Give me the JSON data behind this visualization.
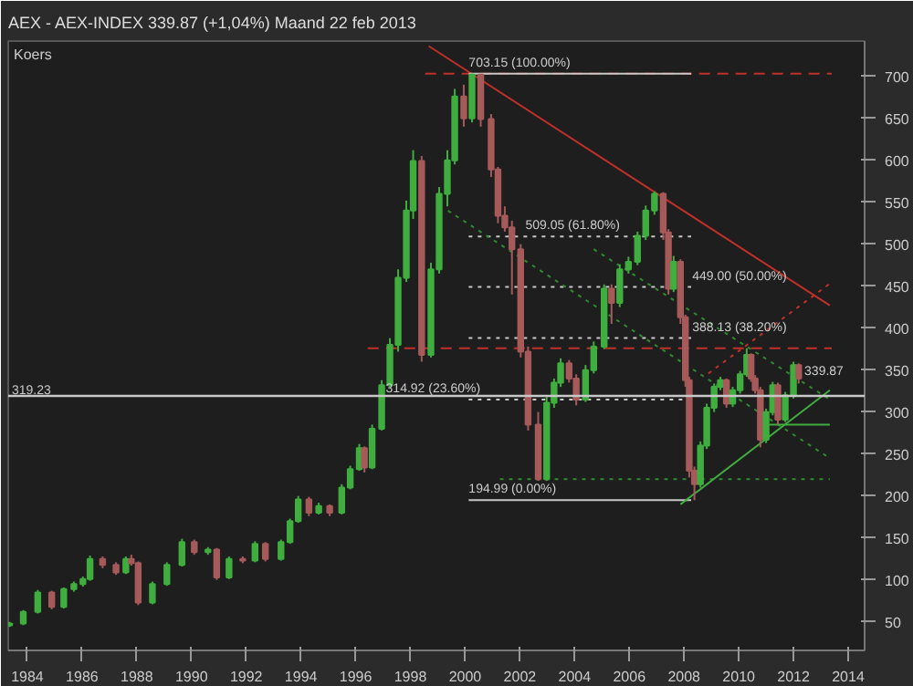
{
  "chart_data": {
    "type": "candlestick",
    "title": "AEX - AEX-INDEX   339.87 (+1,04%)   Maand  22 feb 2013",
    "subtitle": "Koers",
    "x": [
      1983.35,
      1983.85,
      1984.38,
      1984.89,
      1985.33,
      1985.7,
      1986.03,
      1986.29,
      1986.75,
      1987.24,
      1987.6,
      1987.8,
      1988.05,
      1988.57,
      1989.1,
      1989.65,
      1990.1,
      1990.6,
      1990.92,
      1991.37,
      1991.87,
      1992.32,
      1992.7,
      1993.27,
      1993.6,
      1993.9,
      1994.29,
      1994.65,
      1995.05,
      1995.49,
      1995.8,
      1996.13,
      1996.32,
      1996.6,
      1996.95,
      1997.25,
      1997.55,
      1997.85,
      1998.1,
      1998.41,
      1998.75,
      1999.05,
      1999.35,
      1999.62,
      1999.95,
      2000.25,
      2000.57,
      2000.95,
      2001.2,
      2001.45,
      2001.71,
      2002.03,
      2002.3,
      2002.67,
      2002.98,
      2003.25,
      2003.49,
      2003.8,
      2004.06,
      2004.4,
      2004.7,
      2005.08,
      2005.35,
      2005.65,
      2005.97,
      2006.3,
      2006.6,
      2006.92,
      2007.24,
      2007.43,
      2007.62,
      2007.87,
      2008.05,
      2008.19,
      2008.38,
      2008.6,
      2008.83,
      2009.1,
      2009.33,
      2009.55,
      2009.78,
      2010.05,
      2010.29,
      2010.45,
      2010.6,
      2010.79,
      2011.0,
      2011.24,
      2011.43,
      2011.7,
      2012.0,
      2012.19
    ],
    "ohlc": [
      [
        46,
        50,
        44,
        48
      ],
      [
        48,
        64,
        46,
        62
      ],
      [
        62,
        88,
        60,
        85
      ],
      [
        85,
        87,
        65,
        68
      ],
      [
        68,
        91,
        66,
        89
      ],
      [
        89,
        98,
        86,
        95
      ],
      [
        95,
        104,
        92,
        101
      ],
      [
        101,
        129,
        99,
        125
      ],
      [
        125,
        128,
        114,
        118
      ],
      [
        118,
        121,
        106,
        109
      ],
      [
        109,
        128,
        107,
        125
      ],
      [
        125,
        130,
        117,
        120
      ],
      [
        120,
        122,
        70,
        73
      ],
      [
        73,
        98,
        71,
        95
      ],
      [
        95,
        121,
        93,
        118
      ],
      [
        118,
        149,
        116,
        145
      ],
      [
        145,
        148,
        130,
        133
      ],
      [
        133,
        139,
        130,
        136
      ],
      [
        136,
        138,
        100,
        103
      ],
      [
        103,
        128,
        101,
        125
      ],
      [
        125,
        128,
        120,
        123
      ],
      [
        123,
        146,
        121,
        143
      ],
      [
        143,
        145,
        122,
        125
      ],
      [
        125,
        148,
        123,
        145
      ],
      [
        145,
        173,
        143,
        170
      ],
      [
        170,
        200,
        168,
        196
      ],
      [
        196,
        199,
        176,
        180
      ],
      [
        180,
        192,
        178,
        188
      ],
      [
        188,
        190,
        176,
        180
      ],
      [
        180,
        214,
        178,
        210
      ],
      [
        210,
        236,
        208,
        232
      ],
      [
        232,
        262,
        230,
        257
      ],
      [
        257,
        259,
        228,
        234
      ],
      [
        234,
        285,
        232,
        280
      ],
      [
        280,
        338,
        278,
        332
      ],
      [
        332,
        388,
        330,
        380
      ],
      [
        380,
        470,
        372,
        460
      ],
      [
        460,
        552,
        455,
        540
      ],
      [
        540,
        612,
        530,
        599
      ],
      [
        599,
        605,
        360,
        368
      ],
      [
        368,
        478,
        365,
        470
      ],
      [
        470,
        568,
        465,
        560
      ],
      [
        560,
        612,
        545,
        600
      ],
      [
        600,
        685,
        595,
        676
      ],
      [
        676,
        690,
        640,
        650
      ],
      [
        650,
        703.15,
        645,
        702
      ],
      [
        702,
        702,
        640,
        649
      ],
      [
        649,
        655,
        580,
        589
      ],
      [
        589,
        592,
        525,
        534
      ],
      [
        534,
        545,
        515,
        520
      ],
      [
        520,
        528,
        440,
        494
      ],
      [
        494,
        500,
        365,
        372
      ],
      [
        372,
        378,
        278,
        285
      ],
      [
        285,
        300,
        218,
        220
      ],
      [
        220,
        318,
        218,
        311
      ],
      [
        311,
        340,
        305,
        335
      ],
      [
        335,
        364,
        330,
        358
      ],
      [
        358,
        362,
        335,
        340
      ],
      [
        340,
        345,
        308,
        315
      ],
      [
        315,
        356,
        312,
        350
      ],
      [
        350,
        384,
        346,
        378
      ],
      [
        378,
        452,
        375,
        447
      ],
      [
        447,
        452,
        405,
        430
      ],
      [
        430,
        476,
        425,
        470
      ],
      [
        470,
        485,
        465,
        479
      ],
      [
        479,
        515,
        475,
        510
      ],
      [
        510,
        546,
        505,
        540
      ],
      [
        540,
        563,
        535,
        560
      ],
      [
        560,
        562,
        505,
        514
      ],
      [
        514,
        518,
        440,
        447
      ],
      [
        447,
        486,
        443,
        479
      ],
      [
        479,
        482,
        405,
        413
      ],
      [
        413,
        416,
        330,
        338
      ],
      [
        338,
        342,
        222,
        230
      ],
      [
        230,
        235,
        194.99,
        214
      ],
      [
        214,
        265,
        210,
        260
      ],
      [
        260,
        310,
        256,
        305
      ],
      [
        305,
        334,
        300,
        330
      ],
      [
        330,
        342,
        326,
        338
      ],
      [
        338,
        340,
        305,
        310
      ],
      [
        310,
        330,
        306,
        326
      ],
      [
        326,
        349,
        322,
        345
      ],
      [
        345,
        376,
        342,
        368
      ],
      [
        368,
        370,
        336,
        340
      ],
      [
        340,
        344,
        322,
        326
      ],
      [
        326,
        330,
        258,
        267
      ],
      [
        267,
        304,
        263,
        300
      ],
      [
        300,
        336,
        296,
        332
      ],
      [
        332,
        335,
        285,
        291
      ],
      [
        291,
        324,
        288,
        320
      ],
      [
        320,
        360,
        316,
        356
      ],
      [
        356,
        358,
        334,
        339.87
      ]
    ],
    "colors": [
      "#3fae3f",
      "#3fae3f",
      "#3fae3f",
      "#a65a5a",
      "#3fae3f",
      "#3fae3f",
      "#3fae3f",
      "#3fae3f",
      "#a65a5a",
      "#a65a5a",
      "#3fae3f",
      "#a65a5a",
      "#a65a5a",
      "#3fae3f",
      "#3fae3f",
      "#3fae3f",
      "#a65a5a",
      "#3fae3f",
      "#a65a5a",
      "#3fae3f",
      "#a65a5a",
      "#3fae3f",
      "#a65a5a",
      "#3fae3f",
      "#3fae3f",
      "#3fae3f",
      "#a65a5a",
      "#3fae3f",
      "#a65a5a",
      "#3fae3f",
      "#3fae3f",
      "#3fae3f",
      "#a65a5a",
      "#3fae3f",
      "#3fae3f",
      "#3fae3f",
      "#3fae3f",
      "#3fae3f",
      "#3fae3f",
      "#a65a5a",
      "#3fae3f",
      "#3fae3f",
      "#3fae3f",
      "#3fae3f",
      "#a65a5a",
      "#3fae3f",
      "#a65a5a",
      "#a65a5a",
      "#a65a5a",
      "#a65a5a",
      "#a65a5a",
      "#a65a5a",
      "#a65a5a",
      "#a65a5a",
      "#3fae3f",
      "#3fae3f",
      "#3fae3f",
      "#a65a5a",
      "#a65a5a",
      "#3fae3f",
      "#3fae3f",
      "#3fae3f",
      "#a65a5a",
      "#3fae3f",
      "#3fae3f",
      "#3fae3f",
      "#3fae3f",
      "#3fae3f",
      "#a65a5a",
      "#a65a5a",
      "#3fae3f",
      "#a65a5a",
      "#a65a5a",
      "#a65a5a",
      "#a65a5a",
      "#3fae3f",
      "#3fae3f",
      "#3fae3f",
      "#3fae3f",
      "#a65a5a",
      "#3fae3f",
      "#3fae3f",
      "#3fae3f",
      "#a65a5a",
      "#a65a5a",
      "#a65a5a",
      "#3fae3f",
      "#3fae3f",
      "#a65a5a",
      "#3fae3f",
      "#3fae3f",
      "#a65a5a"
    ],
    "series": [
      {
        "type": "line",
        "color": "#c0302a",
        "line_style": "solid",
        "x": [
          1998.67,
          2013.33
        ],
        "values": [
          736,
          427
        ]
      },
      {
        "type": "line",
        "color": "#c0302a",
        "line_style": "dotted",
        "x": [
          2008.89,
          2013.33
        ],
        "values": [
          346,
          453
        ]
      },
      {
        "type": "line",
        "color": "#c0302a",
        "line_style": "dashed",
        "x": [
          1998.54,
          2013.4
        ],
        "values": [
          703.15,
          703.15
        ]
      },
      {
        "type": "line",
        "color": "#c0302a",
        "line_style": "dashed",
        "x": [
          1996.44,
          2013.4
        ],
        "values": [
          376,
          376
        ]
      },
      {
        "type": "line",
        "color": "#c8c8c8",
        "line_style": "solid",
        "x": [
          2000.13,
          2008.26
        ],
        "values": [
          703.15,
          703.15
        ]
      },
      {
        "type": "line",
        "color": "#c8c8c8",
        "line_style": "dotted",
        "x": [
          2000.13,
          2008.26
        ],
        "values": [
          509.05,
          509.05
        ]
      },
      {
        "type": "line",
        "color": "#c8c8c8",
        "line_style": "dotted",
        "x": [
          2000.13,
          2008.26
        ],
        "values": [
          449.0,
          449.0
        ]
      },
      {
        "type": "line",
        "color": "#c8c8c8",
        "line_style": "dotted",
        "x": [
          2000.13,
          2008.26
        ],
        "values": [
          388.13,
          388.13
        ]
      },
      {
        "type": "line",
        "color": "#c8c8c8",
        "line_style": "dotted",
        "x": [
          2000.13,
          2008.26
        ],
        "values": [
          314.92,
          314.92
        ]
      },
      {
        "type": "line",
        "color": "#c8c8c8",
        "line_style": "solid",
        "x": [
          2000.13,
          2008.26
        ],
        "values": [
          194.99,
          194.99
        ]
      },
      {
        "type": "line",
        "color": "#2f8a2f",
        "line_style": "dotted",
        "x": [
          1999.37,
          2013.33
        ],
        "values": [
          540,
          245
        ]
      },
      {
        "type": "line",
        "color": "#2f8a2f",
        "line_style": "dotted",
        "x": [
          2004.7,
          2013.33
        ],
        "values": [
          494,
          315
        ]
      },
      {
        "type": "line",
        "color": "#2f8a2f",
        "line_style": "dotted",
        "x": [
          2001.27,
          2013.33
        ],
        "values": [
          220,
          220
        ]
      },
      {
        "type": "line",
        "color": "#3fae3f",
        "line_style": "solid",
        "x": [
          2007.87,
          2013.33
        ],
        "values": [
          190,
          326
        ]
      },
      {
        "type": "line",
        "color": "#3fae3f",
        "line_style": "solid",
        "x": [
          2011.11,
          2013.33
        ],
        "values": [
          285,
          285
        ]
      }
    ],
    "ref_lines": [
      {
        "axis": "y",
        "value": 319.23,
        "label": "319.23",
        "color": "#c8c8c8",
        "line_style": "solid"
      }
    ],
    "annotations": [
      {
        "text": "703.15 (100.00%)",
        "x": 2000.13,
        "y": 703.15
      },
      {
        "text": "509.05 (61.80%)",
        "x": 2002.2,
        "y": 509.05
      },
      {
        "text": "449.00 (50.00%)",
        "x": 2008.3,
        "y": 449.0
      },
      {
        "text": "388.13 (38.20%)",
        "x": 2008.3,
        "y": 388.13
      },
      {
        "text": "314.92 (23.60%)",
        "x": 1997.1,
        "y": 314.92
      },
      {
        "text": "194.99 (0.00%)",
        "x": 2000.13,
        "y": 194.99
      },
      {
        "text": "339.87",
        "x": 2012.4,
        "y": 339.87
      }
    ],
    "xlim": [
      1983.3,
      2014.6
    ],
    "xticks": [
      1984,
      1986,
      1988,
      1990,
      1992,
      1994,
      1996,
      1998,
      2000,
      2002,
      2004,
      2006,
      2008,
      2010,
      2012,
      2014
    ],
    "ylim": [
      16,
      742
    ],
    "yticks": [
      50,
      100,
      150,
      200,
      250,
      300,
      350,
      400,
      450,
      500,
      550,
      600,
      650,
      700
    ],
    "grid": false
  }
}
